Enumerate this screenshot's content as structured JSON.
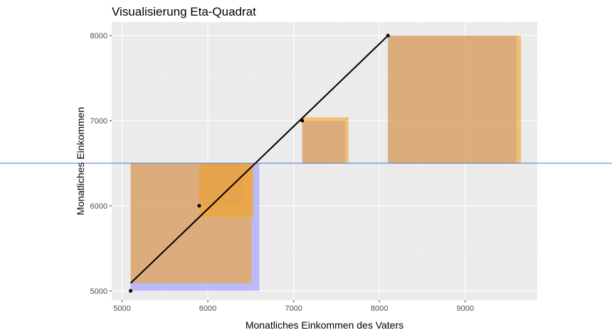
{
  "chart_data": {
    "type": "scatter",
    "title": "Visualisierung Eta-Quadrat",
    "xlabel": "Monatliches Einkommen des Vaters",
    "ylabel": "Monatliches Einkommen",
    "xlim": [
      4880,
      9840
    ],
    "ylim": [
      4890,
      8160
    ],
    "x_ticks": [
      5000,
      6000,
      7000,
      8000,
      9000
    ],
    "y_ticks": [
      5000,
      6000,
      7000,
      8000
    ],
    "grid": true,
    "points": [
      {
        "x": 5100,
        "y": 5000
      },
      {
        "x": 5900,
        "y": 6000
      },
      {
        "x": 7100,
        "y": 7000
      },
      {
        "x": 8100,
        "y": 8000
      }
    ],
    "regression_line": {
      "x": [
        5100,
        8100
      ],
      "y": [
        5090,
        8000
      ]
    },
    "mean_line": {
      "y": 6500
    },
    "squares": [
      {
        "x0": 5100,
        "x1": 6600,
        "y0": 5000,
        "y1": 6500,
        "color": "#9999ff"
      },
      {
        "x0": 5900,
        "x1": 6400,
        "y0": 6000,
        "y1": 6500,
        "color": "#9999ff"
      },
      {
        "x0": 7100,
        "x1": 7600,
        "y0": 6500,
        "y1": 7000,
        "color": "#9999ff"
      },
      {
        "x0": 8100,
        "x1": 9600,
        "y0": 6500,
        "y1": 8000,
        "color": "#9999ff"
      },
      {
        "x0": 5100,
        "x1": 6510,
        "y0": 5090,
        "y1": 6500,
        "color": "#f4a32a"
      },
      {
        "x0": 5900,
        "x1": 6530,
        "y0": 5870,
        "y1": 6500,
        "color": "#f4a32a"
      },
      {
        "x0": 7100,
        "x1": 7640,
        "y0": 6500,
        "y1": 7040,
        "color": "#f4a32a"
      },
      {
        "x0": 8100,
        "x1": 9650,
        "y0": 6500,
        "y1": 8000,
        "color": "#f4a32a"
      }
    ],
    "colors": {
      "panel": "#ebebeb",
      "grid_major": "#ffffff",
      "grid_minor": "#f5f5f5",
      "mean_line": "#4a7bbf",
      "regression_line": "#000000",
      "points": "#000000"
    }
  }
}
